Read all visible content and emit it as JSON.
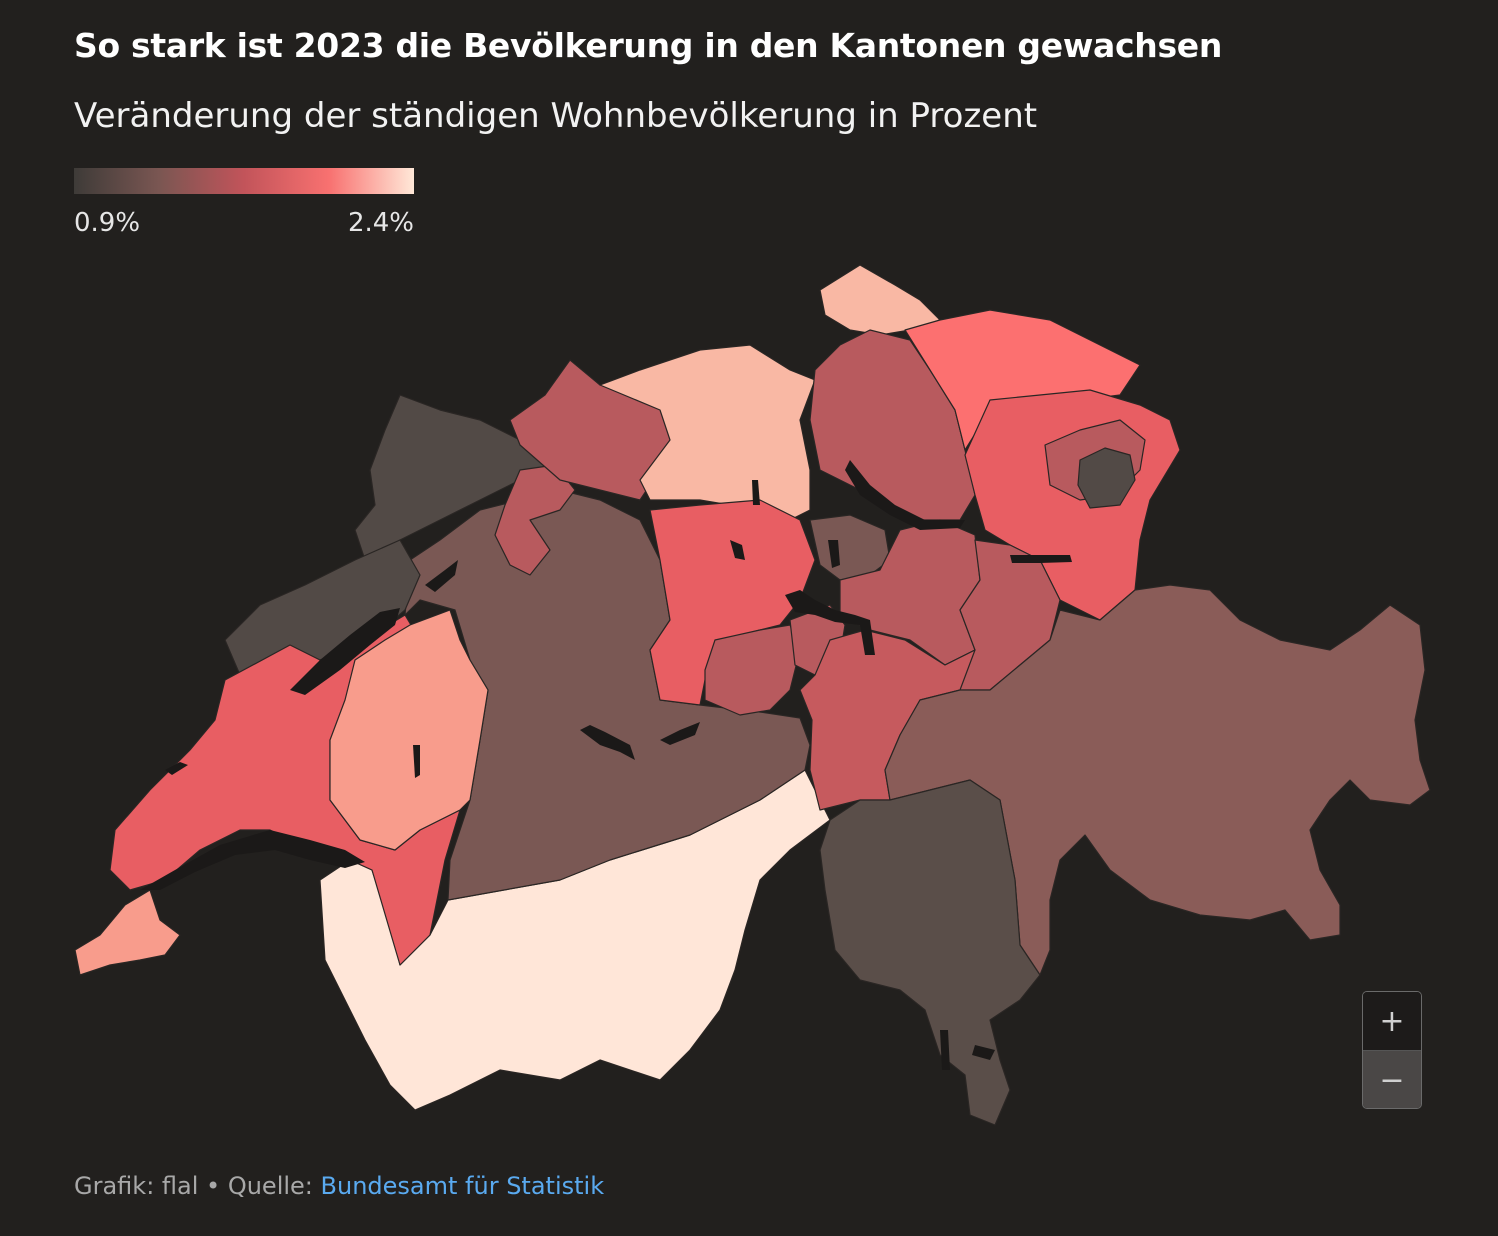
{
  "title": "So stark ist 2023 die Bevölkerung in den Kantonen gewachsen",
  "subtitle": "Veränderung der ständigen Wohnbevölkerung in Prozent",
  "legend": {
    "min_label": "0.9%",
    "max_label": "2.4%",
    "gradient_colors": [
      "#3e3b38",
      "#7a5652",
      "#c2545a",
      "#f87170",
      "#ffe8d8"
    ]
  },
  "footer": {
    "credit": "Grafik: flal",
    "separator": " • ",
    "source_prefix": "Quelle: ",
    "source_link": "Bundesamt für Statistik"
  },
  "zoom": {
    "in_icon": "+",
    "out_icon": "−"
  },
  "colors": {
    "background": "#22201e",
    "darkest": "#524a46",
    "dark": "#7a5854",
    "mid": "#b85a5e",
    "red": "#e85e63",
    "coral": "#fc7070",
    "salmon": "#f89c8c",
    "peach": "#f9b8a4",
    "lightest": "#ffe6d8"
  }
}
